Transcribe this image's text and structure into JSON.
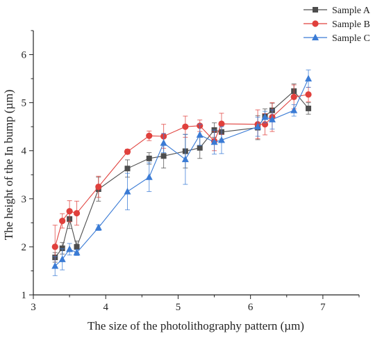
{
  "chart_data": {
    "type": "line",
    "title": "",
    "xlabel": "The size of the photolithography pattern (µm)",
    "ylabel": "The height of the In bump (µm)",
    "xlim": [
      3,
      7.5
    ],
    "ylim": [
      1,
      6.5
    ],
    "xticks": [
      "3",
      "4",
      "5",
      "6",
      "7"
    ],
    "yticks": [
      "1",
      "2",
      "3",
      "4",
      "5",
      "6"
    ],
    "grid": false,
    "legend_position": "top-right",
    "series": [
      {
        "name": "Sample A",
        "color": "#4d4d4d",
        "marker": "square",
        "points": [
          {
            "x": 3.3,
            "y": 1.78,
            "err": 0.1
          },
          {
            "x": 3.4,
            "y": 1.97,
            "err": 0.12
          },
          {
            "x": 3.5,
            "y": 2.58,
            "err": 0.2
          },
          {
            "x": 3.6,
            "y": 2.0,
            "err": 0.12
          },
          {
            "x": 3.9,
            "y": 3.2,
            "err": 0.25
          },
          {
            "x": 4.3,
            "y": 3.63,
            "err": 0.18
          },
          {
            "x": 4.6,
            "y": 3.84,
            "err": 0.12
          },
          {
            "x": 4.8,
            "y": 3.89,
            "err": 0.25
          },
          {
            "x": 5.1,
            "y": 3.99,
            "err": 0.35
          },
          {
            "x": 5.3,
            "y": 4.06,
            "err": 0.22
          },
          {
            "x": 5.5,
            "y": 4.43,
            "err": 0.15
          },
          {
            "x": 5.6,
            "y": 4.39,
            "err": 0.15
          },
          {
            "x": 6.1,
            "y": 4.48,
            "err": 0.25
          },
          {
            "x": 6.2,
            "y": 4.72,
            "err": 0.15
          },
          {
            "x": 6.3,
            "y": 4.84,
            "err": 0.15
          },
          {
            "x": 6.6,
            "y": 5.24,
            "err": 0.15
          },
          {
            "x": 6.8,
            "y": 4.88,
            "err": 0.12
          }
        ]
      },
      {
        "name": "Sample B",
        "color": "#e0403c",
        "marker": "circle",
        "points": [
          {
            "x": 3.3,
            "y": 2.0,
            "err": 0.45
          },
          {
            "x": 3.4,
            "y": 2.54,
            "err": 0.15
          },
          {
            "x": 3.5,
            "y": 2.74,
            "err": 0.22
          },
          {
            "x": 3.6,
            "y": 2.7,
            "err": 0.25
          },
          {
            "x": 3.9,
            "y": 3.25,
            "err": 0.22
          },
          {
            "x": 4.3,
            "y": 3.98,
            "err": 0.05
          },
          {
            "x": 4.6,
            "y": 4.31,
            "err": 0.1
          },
          {
            "x": 4.8,
            "y": 4.3,
            "err": 0.25
          },
          {
            "x": 5.1,
            "y": 4.5,
            "err": 0.22
          },
          {
            "x": 5.3,
            "y": 4.52,
            "err": 0.12
          },
          {
            "x": 5.5,
            "y": 4.2,
            "err": 0.2
          },
          {
            "x": 5.6,
            "y": 4.56,
            "err": 0.22
          },
          {
            "x": 6.1,
            "y": 4.55,
            "err": 0.3
          },
          {
            "x": 6.2,
            "y": 4.55,
            "err": 0.22
          },
          {
            "x": 6.3,
            "y": 4.7,
            "err": 0.3
          },
          {
            "x": 6.6,
            "y": 5.12,
            "err": 0.25
          },
          {
            "x": 6.8,
            "y": 5.17,
            "err": 0.15
          }
        ]
      },
      {
        "name": "Sample C",
        "color": "#3a7bd5",
        "marker": "triangle",
        "points": [
          {
            "x": 3.3,
            "y": 1.6,
            "err": 0.2
          },
          {
            "x": 3.4,
            "y": 1.74,
            "err": 0.22
          },
          {
            "x": 3.5,
            "y": 1.95,
            "err": 0.12
          },
          {
            "x": 3.6,
            "y": 1.88,
            "err": 0.06
          },
          {
            "x": 3.9,
            "y": 2.4,
            "err": 0.06
          },
          {
            "x": 4.3,
            "y": 3.15,
            "err": 0.38
          },
          {
            "x": 4.6,
            "y": 3.45,
            "err": 0.3
          },
          {
            "x": 4.8,
            "y": 4.16,
            "err": 0.2
          },
          {
            "x": 5.1,
            "y": 3.82,
            "err": 0.52
          },
          {
            "x": 5.3,
            "y": 4.33,
            "err": 0.22
          },
          {
            "x": 5.5,
            "y": 4.18,
            "err": 0.25
          },
          {
            "x": 5.6,
            "y": 4.22,
            "err": 0.28
          },
          {
            "x": 6.1,
            "y": 4.5,
            "err": 0.2
          },
          {
            "x": 6.2,
            "y": 4.7,
            "err": 0.12
          },
          {
            "x": 6.3,
            "y": 4.65,
            "err": 0.2
          },
          {
            "x": 6.6,
            "y": 4.84,
            "err": 0.12
          },
          {
            "x": 6.8,
            "y": 5.5,
            "err": 0.18
          }
        ]
      }
    ]
  }
}
